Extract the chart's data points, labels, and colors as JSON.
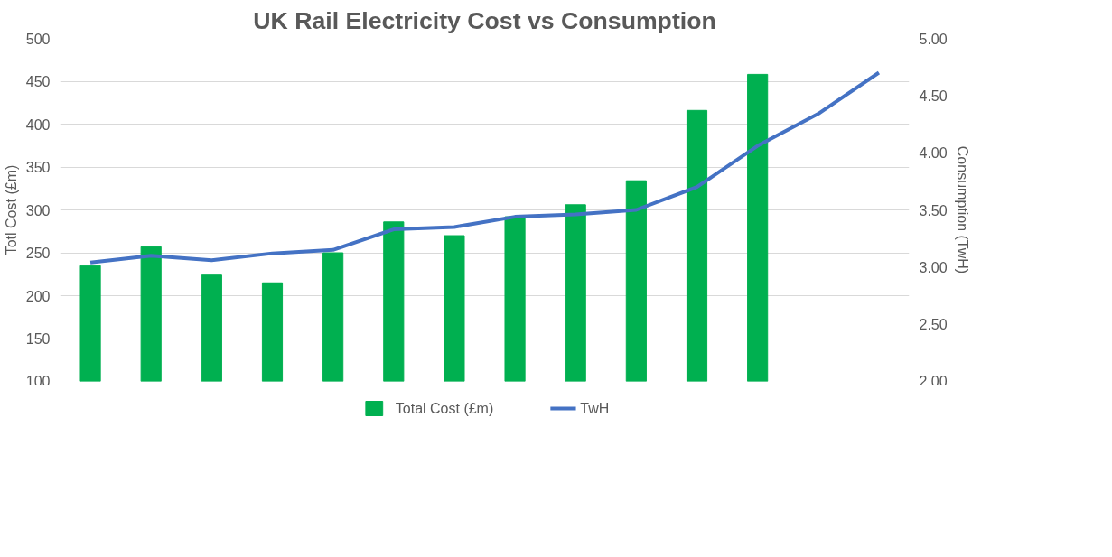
{
  "chart_data": {
    "type": "bar",
    "title": "UK Rail Electricity Cost vs Consumption",
    "ylabel": "Totl Cost (£m)",
    "y2label": "Consumption (TwH)",
    "categories": [
      null,
      null,
      null,
      null,
      null,
      null,
      null,
      null,
      null,
      null,
      null,
      null,
      null,
      null
    ],
    "series": [
      {
        "name": "Total Cost (£m)",
        "color": "#00b050",
        "values": [
          235,
          257,
          224,
          215,
          250,
          286,
          270,
          292,
          306,
          334,
          416,
          458,
          null,
          null
        ]
      },
      {
        "name": "TwH",
        "type": "line",
        "axis": "y2",
        "color": "#4472c4",
        "values": [
          3.04,
          3.1,
          3.06,
          3.12,
          3.15,
          3.33,
          3.35,
          3.44,
          3.46,
          3.5,
          3.7,
          4.06,
          4.34,
          4.7
        ]
      }
    ],
    "ylim": [
      100,
      500
    ],
    "yticks": [
      100,
      150,
      200,
      250,
      300,
      350,
      400,
      450,
      500
    ],
    "y2lim": [
      2.0,
      5.0
    ],
    "y2ticks": [
      {
        "value": 2.0,
        "label": "2.00"
      },
      {
        "value": 2.5,
        "label": "2.50"
      },
      {
        "value": 3.0,
        "label": "3.00"
      },
      {
        "value": 3.5,
        "label": "3.50"
      },
      {
        "value": 4.0,
        "label": "4.00"
      },
      {
        "value": 4.5,
        "label": "4.50"
      },
      {
        "value": 5.0,
        "label": "5.00"
      }
    ],
    "grid": "y",
    "legend": "bottom",
    "tick_labels": "y",
    "marker": "none",
    "line_style": "solid"
  }
}
